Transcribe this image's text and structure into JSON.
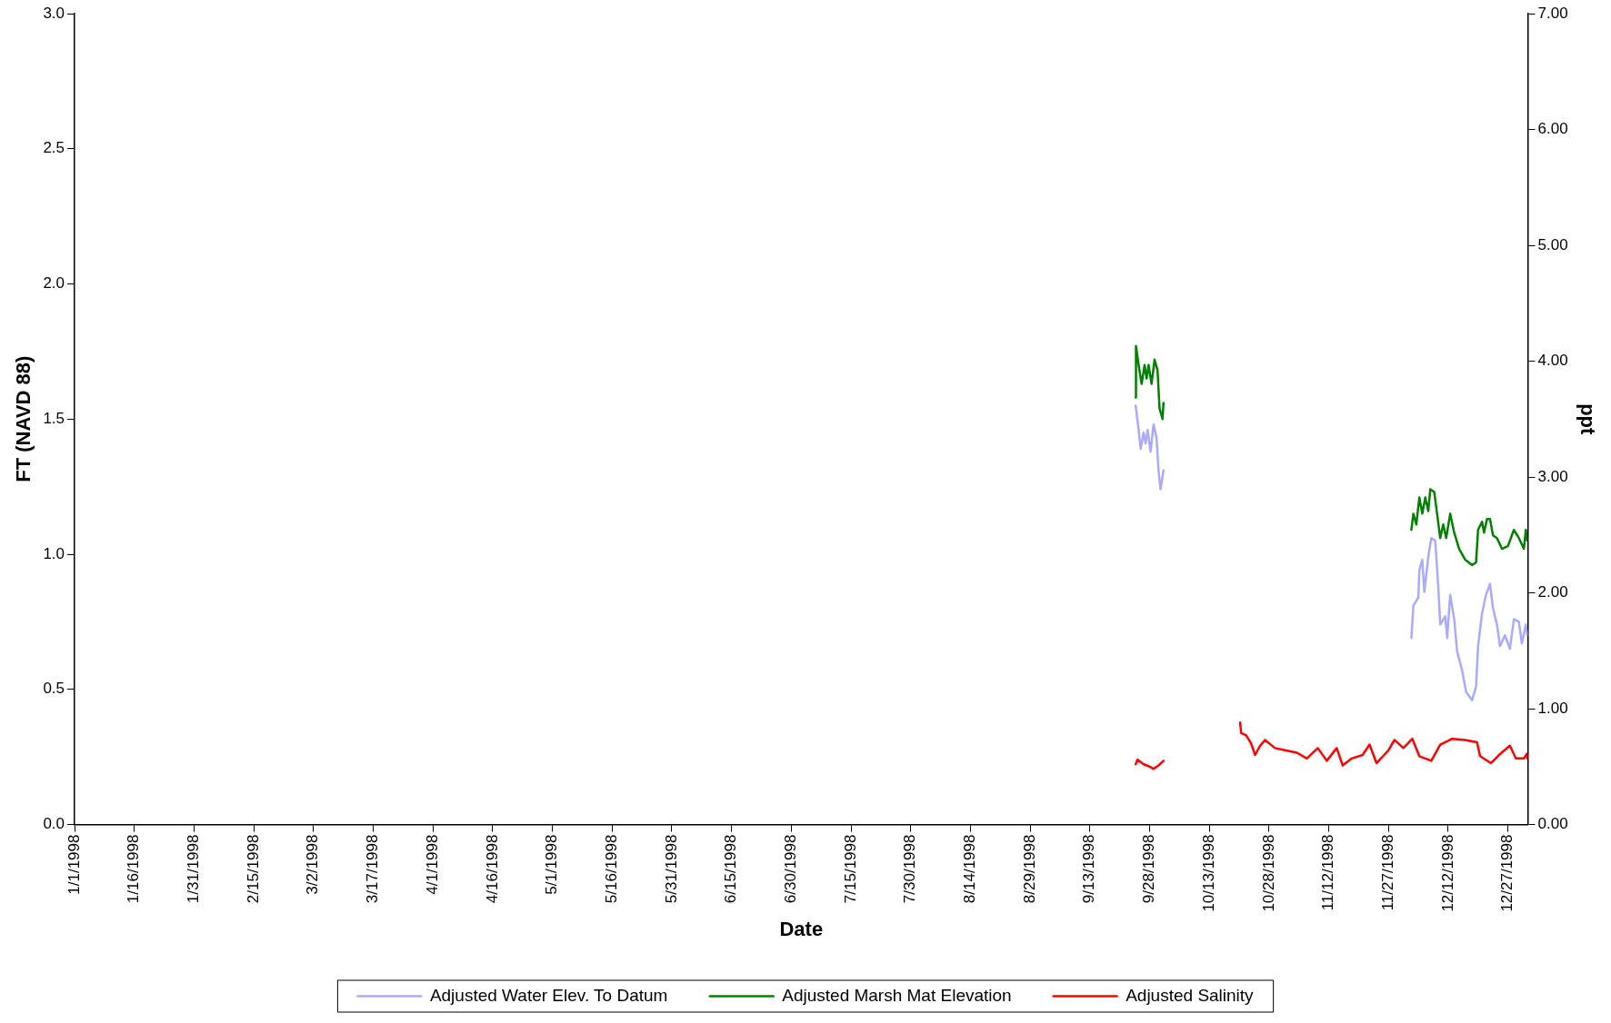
{
  "chart_data": {
    "type": "line",
    "xlabel": "Date",
    "ylabel": "FT (NAVD 88)",
    "y2label": "ppt",
    "xlim": [
      "1998-01-01",
      "1999-01-01"
    ],
    "xticks": [
      {
        "value": "1998-01-01",
        "label": "1/1/1998"
      },
      {
        "value": "1998-01-16",
        "label": "1/16/1998"
      },
      {
        "value": "1998-01-31",
        "label": "1/31/1998"
      },
      {
        "value": "1998-02-15",
        "label": "2/15/1998"
      },
      {
        "value": "1998-03-02",
        "label": "3/2/1998"
      },
      {
        "value": "1998-03-17",
        "label": "3/17/1998"
      },
      {
        "value": "1998-04-01",
        "label": "4/1/1998"
      },
      {
        "value": "1998-04-16",
        "label": "4/16/1998"
      },
      {
        "value": "1998-05-01",
        "label": "5/1/1998"
      },
      {
        "value": "1998-05-16",
        "label": "5/16/1998"
      },
      {
        "value": "1998-05-31",
        "label": "5/31/1998"
      },
      {
        "value": "1998-06-15",
        "label": "6/15/1998"
      },
      {
        "value": "1998-06-30",
        "label": "6/30/1998"
      },
      {
        "value": "1998-07-15",
        "label": "7/15/1998"
      },
      {
        "value": "1998-07-30",
        "label": "7/30/1998"
      },
      {
        "value": "1998-08-14",
        "label": "8/14/1998"
      },
      {
        "value": "1998-08-29",
        "label": "8/29/1998"
      },
      {
        "value": "1998-09-13",
        "label": "9/13/1998"
      },
      {
        "value": "1998-09-28",
        "label": "9/28/1998"
      },
      {
        "value": "1998-10-13",
        "label": "10/13/1998"
      },
      {
        "value": "1998-10-28",
        "label": "10/28/1998"
      },
      {
        "value": "1998-11-12",
        "label": "11/12/1998"
      },
      {
        "value": "1998-11-27",
        "label": "11/27/1998"
      },
      {
        "value": "1998-12-12",
        "label": "12/12/1998"
      },
      {
        "value": "1998-12-27",
        "label": "12/27/1998"
      }
    ],
    "ylim": [
      0,
      3
    ],
    "yticks": [
      {
        "value": 0,
        "label": "0.0"
      },
      {
        "value": 0.5,
        "label": "0.5"
      },
      {
        "value": 1,
        "label": "1.0"
      },
      {
        "value": 1.5,
        "label": "1.5"
      },
      {
        "value": 2,
        "label": "2.0"
      },
      {
        "value": 2.5,
        "label": "2.5"
      },
      {
        "value": 3,
        "label": "3.0"
      }
    ],
    "y2lim": [
      0,
      7
    ],
    "y2ticks": [
      {
        "value": 0,
        "label": "0.00"
      },
      {
        "value": 1,
        "label": "1.00"
      },
      {
        "value": 2,
        "label": "2.00"
      },
      {
        "value": 3,
        "label": "3.00"
      },
      {
        "value": 4,
        "label": "4.00"
      },
      {
        "value": 5,
        "label": "5.00"
      },
      {
        "value": 6,
        "label": "6.00"
      },
      {
        "value": 7,
        "label": "7.00"
      }
    ],
    "grid": false,
    "legend": "bottom",
    "marker": "none",
    "line_style": "solid",
    "series": [
      {
        "name": "Adjusted Water Elev. To Datum",
        "color": "#aaaaff",
        "x": [
          "1998-09-24T12:00",
          "1998-09-25T06:00",
          "1998-09-25T18:00",
          "1998-09-26T12:00",
          "1998-09-27T00:00",
          "1998-09-27T12:00",
          "1998-09-28T06:00",
          "1998-09-29T00:00",
          "1998-09-29T18:00",
          "1998-09-30T06:00",
          "1998-09-30T18:00",
          "1998-10-01T12:00",
          "1998-11-01T00:00",
          "1998-12-02T18:00",
          "1998-12-03T06:00",
          "1998-12-04T12:00",
          "1998-12-04T18:00",
          "1998-12-05T12:00",
          "1998-12-06T00:00",
          "1998-12-07T00:00",
          "1998-12-07T18:00",
          "1998-12-08T18:00",
          "1998-12-09T12:00",
          "1998-12-10T00:00",
          "1998-12-11T06:00",
          "1998-12-11T18:00",
          "1998-12-12T12:00",
          "1998-12-13T12:00",
          "1998-12-14T06:00",
          "1998-12-15T12:00",
          "1998-12-16T12:00",
          "1998-12-18T00:00",
          "1998-12-19T00:00",
          "1998-12-19T12:00",
          "1998-12-20T12:00",
          "1998-12-21T12:00",
          "1998-12-22T12:00",
          "1998-12-23T06:00",
          "1998-12-24T06:00",
          "1998-12-25T00:00",
          "1998-12-26T06:00",
          "1998-12-27T12:00",
          "1998-12-28T12:00",
          "1998-12-29T18:00",
          "1998-12-30T12:00",
          "1998-12-31T12:00",
          "1998-12-31T21:00"
        ],
        "values": [
          1.55,
          1.46,
          1.39,
          1.45,
          1.41,
          1.46,
          1.38,
          1.48,
          1.43,
          1.31,
          1.24,
          1.31,
          null,
          0.69,
          0.81,
          0.84,
          0.94,
          0.98,
          0.86,
          0.99,
          1.06,
          1.05,
          0.88,
          0.74,
          0.77,
          0.69,
          0.85,
          0.76,
          0.64,
          0.57,
          0.49,
          0.46,
          0.51,
          0.66,
          0.78,
          0.85,
          0.89,
          0.8,
          0.74,
          0.66,
          0.7,
          0.65,
          0.76,
          0.75,
          0.67,
          0.74,
          0.7
        ]
      },
      {
        "name": "Adjusted Marsh Mat Elevation",
        "color": "#008000",
        "x": [
          "1998-09-24T12:00",
          "1998-09-24T14:00",
          "1998-09-25T06:00",
          "1998-09-26T00:00",
          "1998-09-26T18:00",
          "1998-09-27T06:00",
          "1998-09-27T18:00",
          "1998-09-28T12:00",
          "1998-09-29T06:00",
          "1998-09-30T00:00",
          "1998-09-30T12:00",
          "1998-10-01T06:00",
          "1998-10-01T12:00",
          "1998-11-01T00:00",
          "1998-12-02T18:00",
          "1998-12-03T06:00",
          "1998-12-04T00:00",
          "1998-12-04T18:00",
          "1998-12-05T12:00",
          "1998-12-06T06:00",
          "1998-12-07T00:00",
          "1998-12-07T12:00",
          "1998-12-08T12:00",
          "1998-12-10T00:00",
          "1998-12-10T18:00",
          "1998-12-11T12:00",
          "1998-12-12T12:00",
          "1998-12-13T12:00",
          "1998-12-14T18:00",
          "1998-12-16T06:00",
          "1998-12-18T00:00",
          "1998-12-19T00:00",
          "1998-12-19T12:00",
          "1998-12-20T12:00",
          "1998-12-21T00:00",
          "1998-12-21T18:00",
          "1998-12-22T12:00",
          "1998-12-23T06:00",
          "1998-12-24T06:00",
          "1998-12-25T12:00",
          "1998-12-27T00:00",
          "1998-12-28T12:00",
          "1998-12-29T18:00",
          "1998-12-31T00:00",
          "1998-12-31T12:00",
          "1998-12-31T21:00"
        ],
        "values": [
          1.58,
          1.77,
          1.7,
          1.63,
          1.7,
          1.65,
          1.7,
          1.63,
          1.72,
          1.68,
          1.54,
          1.5,
          1.56,
          null,
          1.09,
          1.15,
          1.11,
          1.21,
          1.15,
          1.21,
          1.16,
          1.24,
          1.23,
          1.06,
          1.11,
          1.06,
          1.15,
          1.08,
          1.02,
          0.98,
          0.96,
          0.97,
          1.09,
          1.12,
          1.08,
          1.13,
          1.13,
          1.07,
          1.06,
          1.02,
          1.03,
          1.09,
          1.06,
          1.02,
          1.09,
          1.05
        ]
      },
      {
        "name": "Adjusted Salinity",
        "color": "#ff0000",
        "axis": "y2",
        "x": [
          "1998-09-24T12:00",
          "1998-09-25T00:00",
          "1998-09-26T12:00",
          "1998-09-28T00:00",
          "1998-09-29T00:00",
          "1998-09-30T06:00",
          "1998-10-01T12:00",
          "1998-10-10T00:00",
          "1998-10-20T18:00",
          "1998-10-21T00:00",
          "1998-10-22T06:00",
          "1998-10-23T12:00",
          "1998-10-24T12:00",
          "1998-10-25T18:00",
          "1998-10-27T00:00",
          "1998-10-29T12:00",
          "1998-11-01T06:00",
          "1998-11-04T00:00",
          "1998-11-06T12:00",
          "1998-11-09T06:00",
          "1998-11-11T12:00",
          "1998-11-14T00:00",
          "1998-11-15T12:00",
          "1998-11-17T18:00",
          "1998-11-20T12:00",
          "1998-11-22T06:00",
          "1998-11-24T00:00",
          "1998-11-27T00:00",
          "1998-11-28T12:00",
          "1998-11-30T18:00",
          "1998-12-03T00:00",
          "1998-12-04T18:00",
          "1998-12-07T18:00",
          "1998-12-10T00:00",
          "1998-12-13T00:00",
          "1998-12-16T06:00",
          "1998-12-19T06:00",
          "1998-12-20T00:00",
          "1998-12-22T18:00",
          "1998-12-24T18:00",
          "1998-12-27T12:00",
          "1998-12-29T00:00",
          "1998-12-31T00:00",
          "1998-12-31T18:00",
          "1998-12-31T21:00"
        ],
        "values": [
          0.52,
          0.56,
          0.52,
          0.5,
          0.48,
          0.51,
          0.55,
          null,
          0.88,
          0.79,
          0.77,
          0.7,
          0.6,
          0.68,
          0.73,
          0.66,
          0.64,
          0.62,
          0.57,
          0.66,
          0.55,
          0.66,
          0.51,
          0.57,
          0.6,
          0.69,
          0.53,
          0.64,
          0.73,
          0.66,
          0.74,
          0.59,
          0.55,
          0.69,
          0.74,
          0.73,
          0.71,
          0.59,
          0.53,
          0.6,
          0.68,
          0.57,
          0.57,
          0.61,
          0.57
        ]
      }
    ]
  }
}
